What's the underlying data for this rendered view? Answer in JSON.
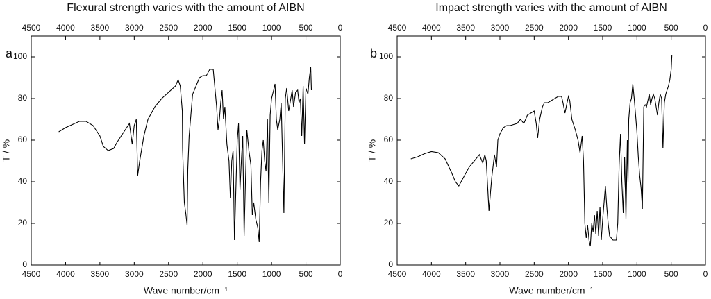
{
  "chart_data": [
    {
      "type": "line",
      "title": "Flexural strength varies with the amount of AIBN",
      "panel": "a",
      "xlabel": "Wave number/cm⁻¹",
      "ylabel": "T / %",
      "color": "#000000",
      "xlim": [
        4500,
        0
      ],
      "ylim": [
        0,
        110
      ],
      "xticks": [
        4500,
        4000,
        3500,
        3000,
        2500,
        2000,
        1500,
        1000,
        500,
        0
      ],
      "yticks": [
        0,
        20,
        40,
        60,
        80,
        100
      ],
      "x": [
        4100,
        4000,
        3900,
        3800,
        3700,
        3600,
        3500,
        3450,
        3380,
        3300,
        3250,
        3150,
        3070,
        3030,
        3000,
        2970,
        2950,
        2920,
        2860,
        2800,
        2700,
        2600,
        2500,
        2400,
        2360,
        2330,
        2300,
        2295,
        2280,
        2270,
        2250,
        2230,
        2220,
        2200,
        2150,
        2100,
        2050,
        2000,
        1950,
        1900,
        1850,
        1800,
        1780,
        1760,
        1740,
        1720,
        1700,
        1680,
        1650,
        1620,
        1600,
        1580,
        1560,
        1540,
        1520,
        1500,
        1480,
        1460,
        1440,
        1420,
        1400,
        1380,
        1360,
        1330,
        1300,
        1280,
        1260,
        1230,
        1200,
        1180,
        1160,
        1140,
        1120,
        1100,
        1080,
        1060,
        1040,
        1020,
        1000,
        970,
        950,
        930,
        910,
        880,
        860,
        820,
        800,
        780,
        750,
        720,
        700,
        680,
        650,
        620,
        600,
        580,
        560,
        540,
        520,
        500,
        470,
        450,
        430,
        420
      ],
      "values": [
        64,
        66,
        67.5,
        69,
        69,
        67,
        62,
        57,
        55,
        56,
        59,
        64,
        68,
        58,
        67,
        70,
        43,
        50,
        62,
        70,
        76,
        80,
        83,
        86,
        89,
        86,
        74,
        56,
        40,
        30,
        25,
        19,
        46,
        62,
        82,
        86,
        90,
        91,
        91,
        94,
        94,
        76,
        65,
        70,
        78,
        84,
        70,
        76,
        58,
        50,
        32,
        50,
        55,
        12,
        36,
        60,
        68,
        36,
        50,
        62,
        14,
        40,
        65,
        55,
        48,
        24,
        30,
        22,
        18,
        11,
        40,
        55,
        60,
        50,
        45,
        70,
        30,
        72,
        80,
        84,
        87,
        70,
        65,
        70,
        78,
        25,
        80,
        85,
        74,
        80,
        84,
        76,
        83,
        84,
        78,
        80,
        62,
        86,
        58,
        85,
        82,
        90,
        95,
        84
      ]
    },
    {
      "type": "line",
      "title": "Impact strength varies with the amount of AIBN",
      "panel": "b",
      "xlabel": "Wave number/cm⁻¹",
      "ylabel": "T / %",
      "color": "#000000",
      "xlim": [
        4500,
        0
      ],
      "ylim": [
        0,
        110
      ],
      "xticks": [
        4500,
        4000,
        3500,
        3000,
        2500,
        2000,
        1500,
        1000,
        500,
        0
      ],
      "yticks": [
        0,
        20,
        40,
        60,
        80,
        100
      ],
      "x": [
        4300,
        4200,
        4100,
        4000,
        3900,
        3800,
        3700,
        3650,
        3600,
        3550,
        3450,
        3350,
        3300,
        3250,
        3220,
        3200,
        3160,
        3120,
        3080,
        3050,
        3030,
        3000,
        2950,
        2900,
        2850,
        2800,
        2750,
        2700,
        2650,
        2600,
        2550,
        2500,
        2470,
        2450,
        2420,
        2380,
        2350,
        2300,
        2250,
        2200,
        2150,
        2100,
        2080,
        2050,
        2020,
        2000,
        1980,
        1950,
        1900,
        1860,
        1830,
        1800,
        1780,
        1760,
        1740,
        1720,
        1700,
        1680,
        1660,
        1640,
        1620,
        1600,
        1580,
        1560,
        1540,
        1520,
        1500,
        1480,
        1460,
        1440,
        1420,
        1400,
        1350,
        1300,
        1280,
        1260,
        1240,
        1220,
        1200,
        1180,
        1160,
        1140,
        1130,
        1120,
        1100,
        1080,
        1060,
        1040,
        1020,
        1000,
        980,
        960,
        940,
        920,
        900,
        880,
        860,
        840,
        820,
        800,
        780,
        760,
        740,
        720,
        700,
        680,
        660,
        640,
        620,
        600,
        580,
        560,
        540,
        520,
        500,
        490
      ],
      "values": [
        51,
        52,
        53.5,
        54.5,
        54,
        51,
        44,
        40,
        38,
        41,
        47,
        51,
        53,
        49,
        53,
        50,
        26,
        42,
        53,
        47,
        60,
        63,
        66,
        67,
        67,
        67.5,
        68,
        70,
        68,
        72,
        73,
        74,
        68,
        61,
        70,
        76,
        78,
        78,
        79,
        80,
        81,
        81,
        78,
        73,
        78,
        81,
        79,
        70,
        65,
        60,
        54,
        62,
        50,
        20,
        13,
        19,
        12,
        9,
        20,
        16,
        24,
        15,
        26,
        14,
        28,
        12,
        22,
        30,
        38,
        28,
        20,
        14,
        12,
        12,
        20,
        48,
        63,
        40,
        25,
        52,
        22,
        60,
        40,
        70,
        78,
        80,
        87,
        80,
        72,
        64,
        52,
        43,
        37,
        27,
        76,
        77,
        76,
        79,
        82,
        77,
        80,
        82,
        80,
        76,
        72,
        78,
        82,
        80,
        56,
        78,
        82,
        84,
        86,
        89,
        94,
        101
      ]
    }
  ]
}
